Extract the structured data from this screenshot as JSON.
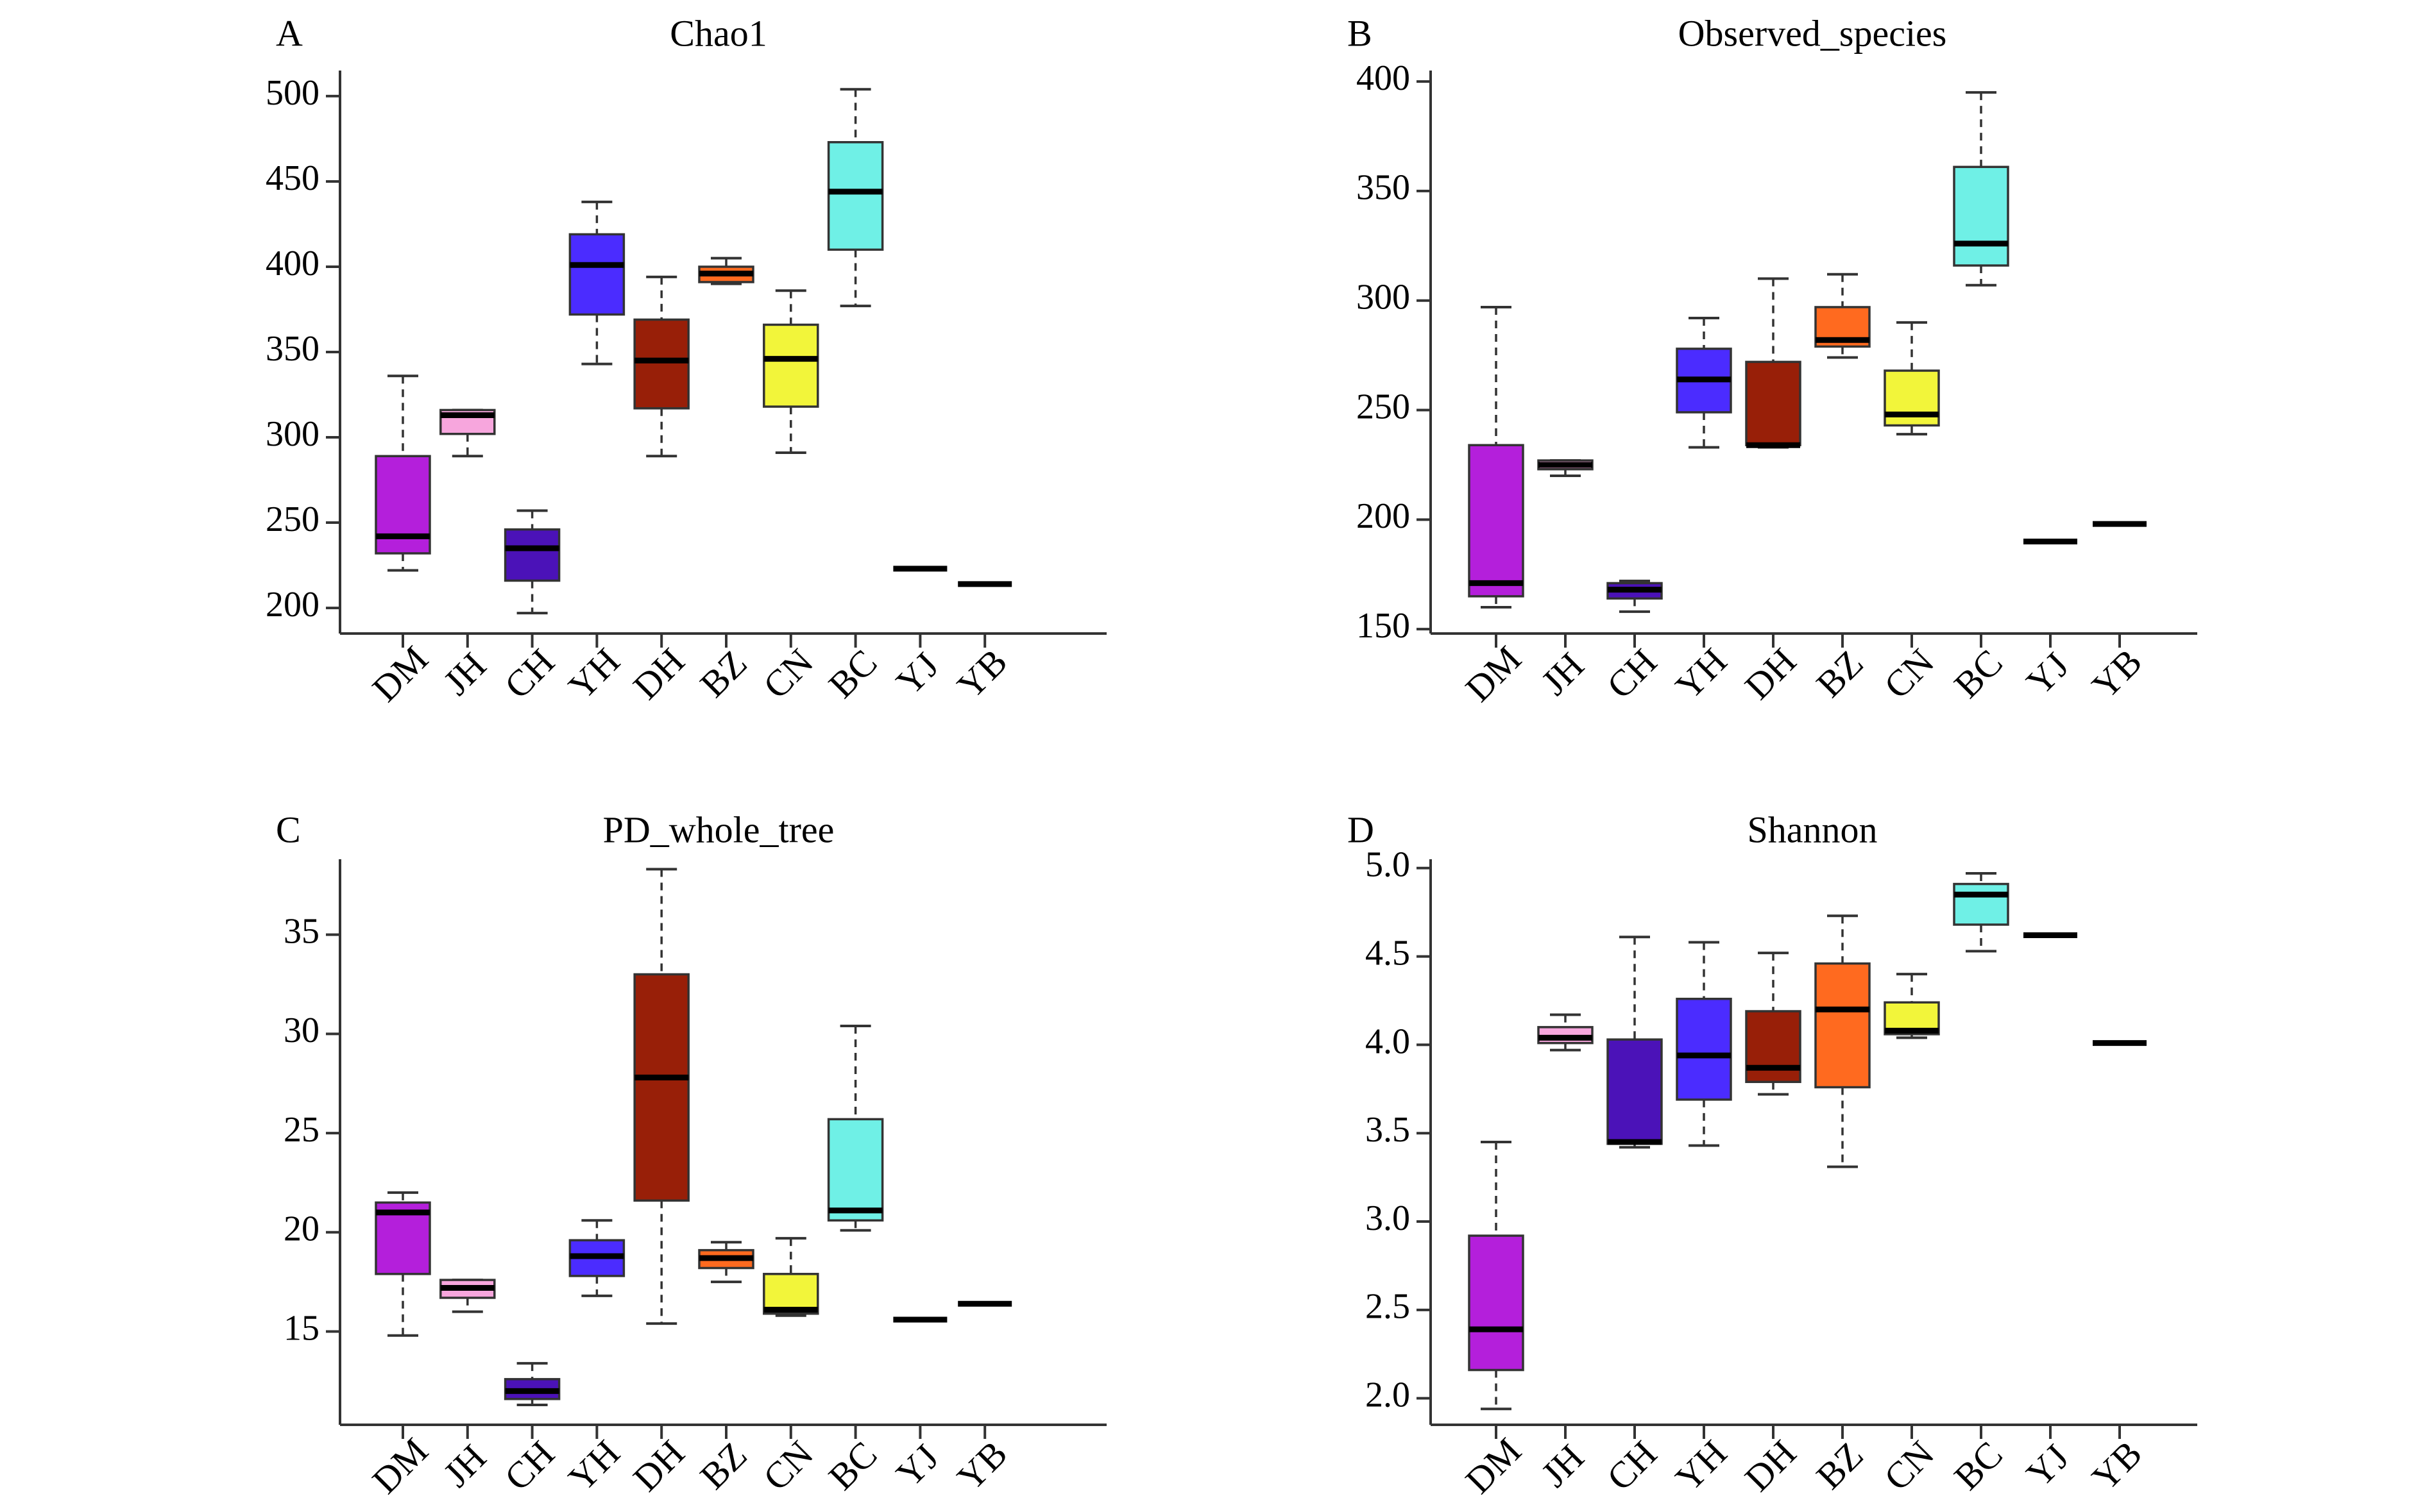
{
  "chart_data": [
    {
      "panel": "A",
      "type": "box",
      "title": "Chao1",
      "categories": [
        "DM",
        "JH",
        "CH",
        "YH",
        "DH",
        "BZ",
        "CN",
        "BC",
        "YJ",
        "YB"
      ],
      "colors": [
        "#b41fdb",
        "#f7a6dd",
        "#4b12b8",
        "#4b2cff",
        "#981f08",
        "#ff6a1f",
        "#f2f53a",
        "#6ff0e6",
        "#1a1a1a",
        "#1a1a1a"
      ],
      "ylim": [
        185,
        515
      ],
      "yticks": [
        200,
        250,
        300,
        350,
        400,
        450,
        500
      ],
      "boxes": [
        {
          "min": 222,
          "q1": 232,
          "median": 242,
          "q3": 289,
          "max": 336
        },
        {
          "min": 289,
          "q1": 302,
          "median": 313,
          "q3": 316,
          "max": 316
        },
        {
          "min": 197,
          "q1": 216,
          "median": 235,
          "q3": 246,
          "max": 257
        },
        {
          "min": 343,
          "q1": 372,
          "median": 401,
          "q3": 419,
          "max": 438
        },
        {
          "min": 289,
          "q1": 317,
          "median": 345,
          "q3": 369,
          "max": 394
        },
        {
          "min": 390,
          "q1": 391,
          "median": 396,
          "q3": 400,
          "max": 405
        },
        {
          "min": 291,
          "q1": 318,
          "median": 346,
          "q3": 366,
          "max": 386
        },
        {
          "min": 377,
          "q1": 410,
          "median": 444,
          "q3": 473,
          "max": 504
        },
        {
          "min": 223,
          "q1": 223,
          "median": 223,
          "q3": 223,
          "max": 223
        },
        {
          "min": 214,
          "q1": 214,
          "median": 214,
          "q3": 214,
          "max": 214
        }
      ]
    },
    {
      "panel": "B",
      "type": "box",
      "title": "Observed_species",
      "categories": [
        "DM",
        "JH",
        "CH",
        "YH",
        "DH",
        "BZ",
        "CN",
        "BC",
        "YJ",
        "YB"
      ],
      "colors": [
        "#b41fdb",
        "#f7a6dd",
        "#4b12b8",
        "#4b2cff",
        "#981f08",
        "#ff6a1f",
        "#f2f53a",
        "#6ff0e6",
        "#1a1a1a",
        "#1a1a1a"
      ],
      "ylim": [
        148,
        405
      ],
      "yticks": [
        150,
        200,
        250,
        300,
        350,
        400
      ],
      "boxes": [
        {
          "min": 160,
          "q1": 165,
          "median": 171,
          "q3": 234,
          "max": 297
        },
        {
          "min": 220,
          "q1": 223,
          "median": 225,
          "q3": 227,
          "max": 227
        },
        {
          "min": 158,
          "q1": 164,
          "median": 168,
          "q3": 171,
          "max": 172
        },
        {
          "min": 233,
          "q1": 249,
          "median": 264,
          "q3": 278,
          "max": 292
        },
        {
          "min": 233,
          "q1": 234,
          "median": 234,
          "q3": 272,
          "max": 310
        },
        {
          "min": 274,
          "q1": 279,
          "median": 282,
          "q3": 297,
          "max": 312
        },
        {
          "min": 239,
          "q1": 243,
          "median": 248,
          "q3": 268,
          "max": 290
        },
        {
          "min": 307,
          "q1": 316,
          "median": 326,
          "q3": 361,
          "max": 395
        },
        {
          "min": 190,
          "q1": 190,
          "median": 190,
          "q3": 190,
          "max": 190
        },
        {
          "min": 198,
          "q1": 198,
          "median": 198,
          "q3": 198,
          "max": 198
        }
      ]
    },
    {
      "panel": "C",
      "type": "box",
      "title": "PD_whole_tree",
      "categories": [
        "DM",
        "JH",
        "CH",
        "YH",
        "DH",
        "BZ",
        "CN",
        "BC",
        "YJ",
        "YB"
      ],
      "colors": [
        "#b41fdb",
        "#f7a6dd",
        "#4b12b8",
        "#4b2cff",
        "#981f08",
        "#ff6a1f",
        "#f2f53a",
        "#6ff0e6",
        "#1a1a1a",
        "#1a1a1a"
      ],
      "ylim": [
        10.3,
        38.8
      ],
      "yticks": [
        15,
        20,
        25,
        30,
        35
      ],
      "boxes": [
        {
          "min": 14.8,
          "q1": 17.9,
          "median": 21.0,
          "q3": 21.5,
          "max": 22.0
        },
        {
          "min": 16.0,
          "q1": 16.7,
          "median": 17.2,
          "q3": 17.6,
          "max": 17.6
        },
        {
          "min": 11.3,
          "q1": 11.6,
          "median": 12.0,
          "q3": 12.6,
          "max": 13.4
        },
        {
          "min": 16.8,
          "q1": 17.8,
          "median": 18.8,
          "q3": 19.6,
          "max": 20.6
        },
        {
          "min": 15.4,
          "q1": 21.6,
          "median": 27.8,
          "q3": 33.0,
          "max": 38.3
        },
        {
          "min": 17.5,
          "q1": 18.2,
          "median": 18.7,
          "q3": 19.1,
          "max": 19.5
        },
        {
          "min": 15.8,
          "q1": 15.9,
          "median": 16.1,
          "q3": 17.9,
          "max": 19.7
        },
        {
          "min": 20.1,
          "q1": 20.6,
          "median": 21.1,
          "q3": 25.7,
          "max": 30.4
        },
        {
          "min": 15.6,
          "q1": 15.6,
          "median": 15.6,
          "q3": 15.6,
          "max": 15.6
        },
        {
          "min": 16.4,
          "q1": 16.4,
          "median": 16.4,
          "q3": 16.4,
          "max": 16.4
        }
      ]
    },
    {
      "panel": "D",
      "type": "box",
      "title": "Shannon",
      "categories": [
        "DM",
        "JH",
        "CH",
        "YH",
        "DH",
        "BZ",
        "CN",
        "BC",
        "YJ",
        "YB"
      ],
      "colors": [
        "#b41fdb",
        "#f7a6dd",
        "#4b12b8",
        "#4b2cff",
        "#981f08",
        "#ff6a1f",
        "#f2f53a",
        "#6ff0e6",
        "#1a1a1a",
        "#1a1a1a"
      ],
      "ylim": [
        1.85,
        5.05
      ],
      "yticks": [
        2.0,
        2.5,
        3.0,
        3.5,
        4.0,
        4.5,
        5.0
      ],
      "tick_decimals": 1,
      "boxes": [
        {
          "min": 1.94,
          "q1": 2.16,
          "median": 2.39,
          "q3": 2.92,
          "max": 3.45
        },
        {
          "min": 3.97,
          "q1": 4.01,
          "median": 4.04,
          "q3": 4.1,
          "max": 4.17
        },
        {
          "min": 3.42,
          "q1": 3.44,
          "median": 3.45,
          "q3": 4.03,
          "max": 4.61
        },
        {
          "min": 3.43,
          "q1": 3.69,
          "median": 3.94,
          "q3": 4.26,
          "max": 4.58
        },
        {
          "min": 3.72,
          "q1": 3.79,
          "median": 3.87,
          "q3": 4.19,
          "max": 4.52
        },
        {
          "min": 3.31,
          "q1": 3.76,
          "median": 4.2,
          "q3": 4.46,
          "max": 4.73
        },
        {
          "min": 4.04,
          "q1": 4.06,
          "median": 4.08,
          "q3": 4.24,
          "max": 4.4
        },
        {
          "min": 4.53,
          "q1": 4.68,
          "median": 4.85,
          "q3": 4.91,
          "max": 4.97
        },
        {
          "min": 4.62,
          "q1": 4.62,
          "median": 4.62,
          "q3": 4.62,
          "max": 4.62
        },
        {
          "min": 4.01,
          "q1": 4.01,
          "median": 4.01,
          "q3": 4.01,
          "max": 4.01
        }
      ]
    }
  ]
}
